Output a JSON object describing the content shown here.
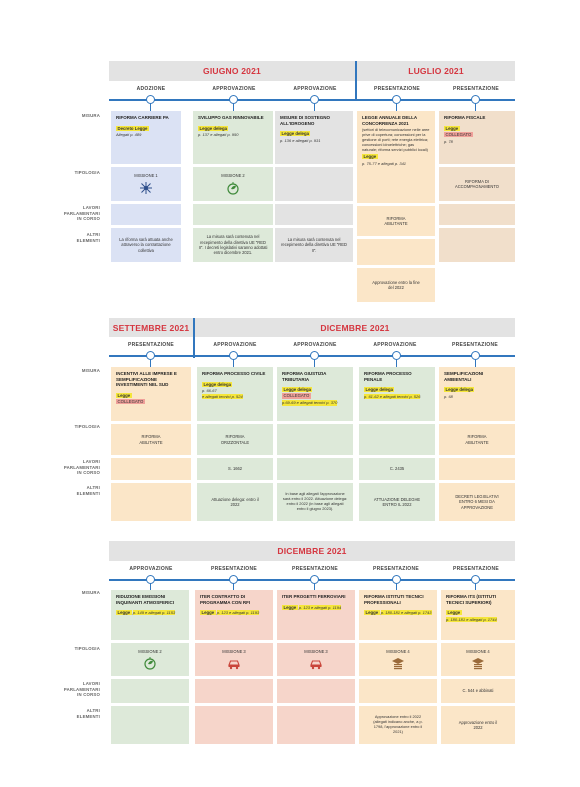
{
  "row_labels": {
    "misura": "MISURA",
    "tipologia": "TIPOLOGIA",
    "lavori": [
      "LAVORI",
      "PARLAMENTARI",
      "IN CORSO"
    ],
    "altri": [
      "ALTRI",
      "ELEMENTI"
    ]
  },
  "section1": {
    "months": [
      "GIUGNO 2021",
      "LUGLIO 2021"
    ],
    "phases": [
      "ADOZIONE",
      "APPROVAZIONE",
      "APPROVAZIONE",
      "PRESENTAZIONE",
      "PRESENTAZIONE"
    ],
    "columns": [
      {
        "title": "RIFORMA CARRIERE PA",
        "tag": "Decreto Legge",
        "ref": "Allegati p. 489",
        "tipologia": "MISSIONE 1",
        "altri": "La riforma sarà attuata anche attraverso la contrattazione collettiva"
      },
      {
        "title": "SVILUPPO GAS RINNOVABILE",
        "tag": "Legge delega",
        "ref": "p. 137 e allegati p. 950",
        "tipologia": "MISSIONE 2",
        "altri": "La misura sarà contenuta nel recepimento della direttiva UE \"RED II\". I decreti legislativi saranno adottati entro dicembre 2021."
      },
      {
        "title": "MISURE DI SOSTEGNO ALL'IDROGENO",
        "tag": "Legge delega",
        "ref": "p. 136 e allegati p. 931",
        "altri": "La misura sarà contenuta nel recepimento della direttiva UE \"RED II\"."
      },
      {
        "title": "LEGGE ANNUALE DELLA CONCORRENZA 2021",
        "desc": "(settori di telecomunicazione nelle aree prive di copertura; concessioni per la gestione di porti; rete energia elettrica; concessioni idroelettriche; gas naturale; riforma servizi pubblici locali)",
        "tag": "Legge",
        "ref": "p. 75-77 e allegati p. 341",
        "tipologia": "RIFORMA ABILITANTE",
        "altri": "Approvazione entro la fine del 2022"
      },
      {
        "title": "RIFORMA FISCALE",
        "tag": "Legge",
        "tag2": "COLLEGATO",
        "ref": "p. 78",
        "tipologia": "RIFORMA DI ACCOMPAGNAMENTO"
      }
    ]
  },
  "section2": {
    "months": [
      "SETTEMBRE 2021",
      "DICEMBRE 2021"
    ],
    "phases": [
      "PRESENTAZIONE",
      "APPROVAZIONE",
      "APPROVAZIONE",
      "APPROVAZIONE",
      "PRESENTAZIONE"
    ],
    "columns": [
      {
        "title": "INCENTIVI ALLE IMPRESE E SEMPLIFICAZIONE INVESTIMENTI NEL SUD",
        "tag": "Legge",
        "tag2": "COLLEGATO",
        "tipologia": "RIFORMA ABILITANTE"
      },
      {
        "title": "RIFORMA PROCESSO CIVILE",
        "tag": "Legge delega",
        "ref": "p. 66-67",
        "ref2": "e allegati tecnici p. 524",
        "tipologia": "RIFORMA ORIZZONTALE",
        "lavori": "S. 1662",
        "altri": "Attuazione delega: entro il 2022"
      },
      {
        "title": "RIFORMA GIUSTIZIA TRIBUTARIA",
        "tag": "Legge delega",
        "tag2": "COLLEGATO",
        "ref": "p.69-69 e allegati tecnici p. 370",
        "altri": "In base agli allegati l'approvazione sarà entro il 2022. Attuazione delega: entro il 2022 (in base agli allegati entro il giugno 2023)."
      },
      {
        "title": "RIFORMA PROCESSO PENALE",
        "tag": "Legge delega",
        "ref": "p. 61-62 e allegati tecnici p. 526",
        "lavori": "C. 2435",
        "altri": "ATTUAZIONE DELEGHE ENTRO IL 2022"
      },
      {
        "title": "SEMPLIFICAZIONI AMBIENTALI",
        "tag": "Legge delega",
        "ref": "p. 68",
        "tipologia": "RIFORMA ABILITANTE",
        "altri": "DECRETI LEGISLATIVI ENTRO 6 MESI DA APPROVAZIONE"
      }
    ]
  },
  "section3": {
    "months": [
      "DICEMBRE 2021"
    ],
    "phases": [
      "APPROVAZIONE",
      "PRESENTAZIONE",
      "PRESENTAZIONE",
      "PRESENTAZIONE",
      "PRESENTAZIONE"
    ],
    "columns": [
      {
        "title": "RIDUZIONE EMISSIONI INQUINANTI ATMOSFERICI",
        "tag": "Legge",
        "ref": "p. 149 e allegati p. 1153",
        "tipologia": "MISSIONE 2"
      },
      {
        "title": "ITER CONTRATTO DI PROGRAMMA CON RFI",
        "tag": "Legge",
        "ref": "p. 123 e allegati p. 1193",
        "tipologia": "MISSIONE 3"
      },
      {
        "title": "ITER PROGETTI FERROVIARI",
        "tag": "Legge",
        "ref": "p. 123 e allegati p. 1194",
        "tipologia": "MISSIONE 3"
      },
      {
        "title": "RIFORMA ISTITUTI TECNICI PROFESSIONALI",
        "tag": "Legge",
        "ref": "p. 180-181 e allegati p. 1743",
        "tipologia": "MISSIONE 4",
        "altri": "Approvazione entro il 2022 (allegati indicano anche, a p. 1798, l'approvazione entro il 2021)"
      },
      {
        "title": "RIFORMA ITS (ISTITUTI TECNICI SUPERIORI)",
        "tag": "Legge",
        "ref": "p. 180-181 e allegati p. 1744",
        "tipologia": "MISSIONE 4",
        "lavori": "C. 544 e abbinati",
        "altri": "Approvazione entro il 2022"
      }
    ]
  },
  "colors": {
    "accent_red": "#d53640",
    "timeline_blue": "#3277be",
    "highlight_yellow": "#f5e63a",
    "collegato_pink": "#f0a09a"
  }
}
